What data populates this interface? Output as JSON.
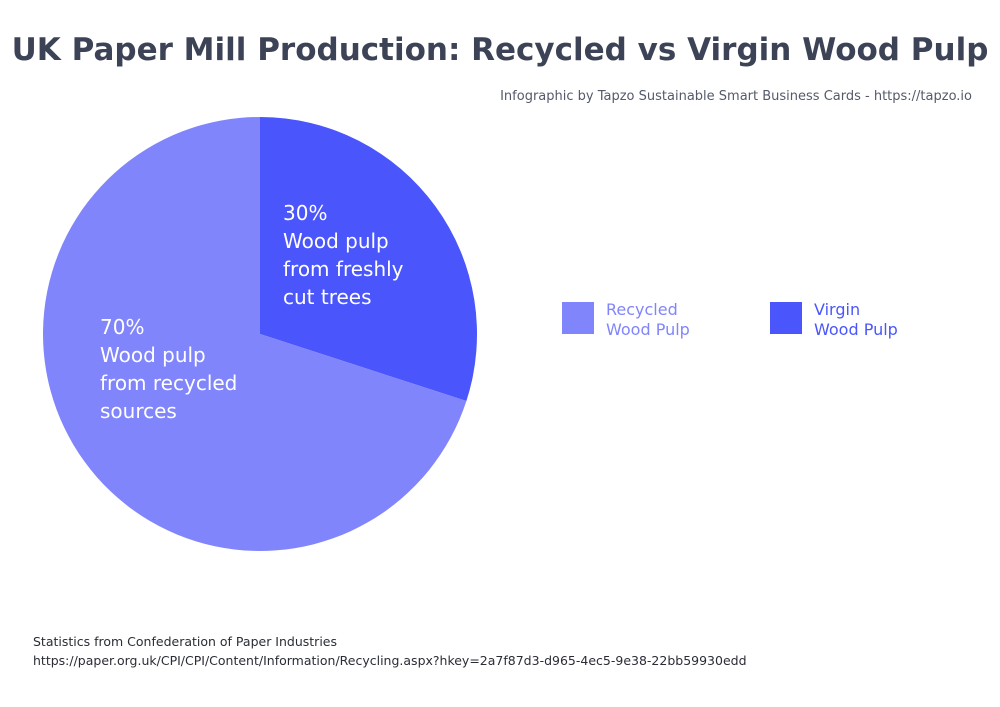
{
  "title": "UK Paper Mill Production: Recycled vs Virgin Wood Pulp",
  "subtitle": "Infographic by Tapzo Sustainable Smart Business Cards - https://tapzo.io",
  "footer": {
    "line1": "Statistics from Confederation of Paper Industries",
    "line2": "https://paper.org.uk/CPI/CPI/Content/Information/Recycling.aspx?hkey=2a7f87d3-d965-4ec5-9e38-22bb59930edd"
  },
  "chart_data": {
    "type": "pie",
    "title": "UK Paper Mill Production: Recycled vs Virgin Wood Pulp",
    "legend_position": "right",
    "slices": [
      {
        "name": "Virgin Wood Pulp",
        "value": 30,
        "color": "#4a56fb",
        "percent_label": "30%",
        "label_lines": [
          "Wood pulp",
          "from freshly",
          "cut trees"
        ],
        "legend_lines": [
          "Virgin",
          "Wood Pulp"
        ]
      },
      {
        "name": "Recycled Wood Pulp",
        "value": 70,
        "color": "#8185fb",
        "percent_label": "70%",
        "label_lines": [
          "Wood pulp",
          "from recycled",
          "sources"
        ],
        "legend_lines": [
          "Recycled",
          "Wood Pulp"
        ]
      }
    ]
  }
}
